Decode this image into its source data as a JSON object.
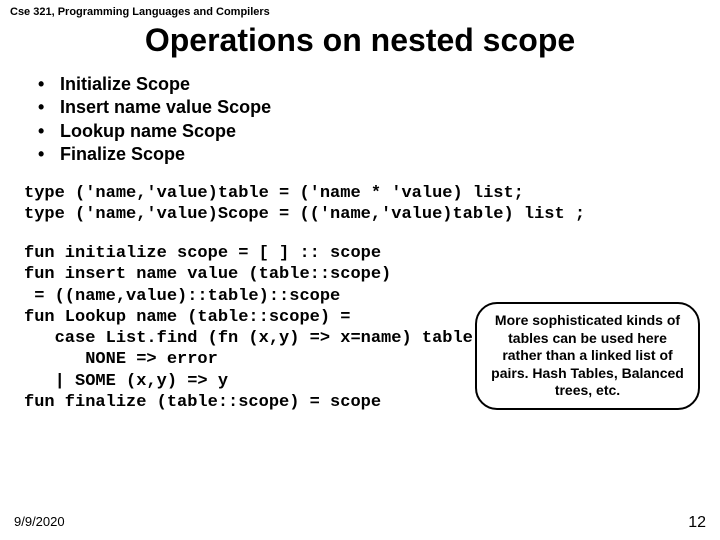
{
  "header": {
    "course": "Cse 321, Programming Languages and Compilers"
  },
  "title": "Operations on nested scope",
  "bullets": [
    "Initialize Scope",
    "Insert name value Scope",
    "Lookup name Scope",
    "Finalize Scope"
  ],
  "types_code": "type ('name,'value)table = ('name * 'value) list;\ntype ('name,'value)Scope = (('name,'value)table) list ;",
  "funs_code": "fun initialize scope = [ ] :: scope\nfun insert name value (table::scope)\n = ((name,value)::table)::scope\nfun Lookup name (table::scope) =\n   case List.find (fn (x,y) => x=name) table of\n      NONE => error\n   | SOME (x,y) => y\nfun finalize (table::scope) = scope",
  "callout": "More sophisticated kinds of tables can be used here rather than a linked list of pairs. Hash Tables, Balanced trees, etc.",
  "footer": {
    "date": "9/9/2020",
    "page": "12"
  }
}
